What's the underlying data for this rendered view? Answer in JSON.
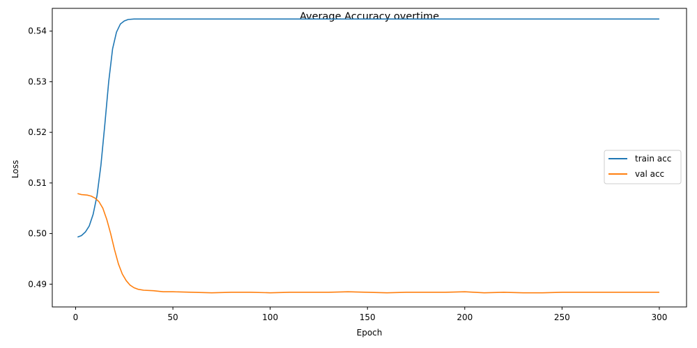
{
  "chart_data": {
    "type": "line",
    "title": "Average Accuracy overtime",
    "xlabel": "Epoch",
    "ylabel": "Loss",
    "xlim": [
      -12,
      314
    ],
    "ylim": [
      0.4855,
      0.5445
    ],
    "xticks": [
      0,
      50,
      100,
      150,
      200,
      250,
      300
    ],
    "yticks": [
      0.49,
      0.5,
      0.51,
      0.52,
      0.53,
      0.54
    ],
    "ytick_labels": [
      "0.49",
      "0.50",
      "0.51",
      "0.52",
      "0.53",
      "0.54"
    ],
    "grid": false,
    "legend_position": "center-right",
    "series": [
      {
        "name": "train acc",
        "color": "#1f77b4",
        "points": [
          [
            1,
            0.4993
          ],
          [
            3,
            0.4996
          ],
          [
            5,
            0.5003
          ],
          [
            7,
            0.5015
          ],
          [
            9,
            0.5038
          ],
          [
            11,
            0.5075
          ],
          [
            13,
            0.5135
          ],
          [
            15,
            0.5215
          ],
          [
            17,
            0.53
          ],
          [
            19,
            0.5365
          ],
          [
            21,
            0.5398
          ],
          [
            23,
            0.5414
          ],
          [
            25,
            0.542
          ],
          [
            27,
            0.5423
          ],
          [
            30,
            0.5424
          ],
          [
            35,
            0.5424
          ],
          [
            50,
            0.5424
          ],
          [
            100,
            0.5424
          ],
          [
            150,
            0.5424
          ],
          [
            200,
            0.5424
          ],
          [
            250,
            0.5424
          ],
          [
            300,
            0.5424
          ]
        ]
      },
      {
        "name": "val acc",
        "color": "#ff7f0e",
        "points": [
          [
            1,
            0.5079
          ],
          [
            3,
            0.5077
          ],
          [
            6,
            0.5076
          ],
          [
            8,
            0.5074
          ],
          [
            10,
            0.507
          ],
          [
            12,
            0.5063
          ],
          [
            14,
            0.505
          ],
          [
            16,
            0.5028
          ],
          [
            18,
            0.5
          ],
          [
            20,
            0.4968
          ],
          [
            22,
            0.494
          ],
          [
            24,
            0.492
          ],
          [
            26,
            0.4907
          ],
          [
            28,
            0.4898
          ],
          [
            30,
            0.4893
          ],
          [
            32,
            0.489
          ],
          [
            35,
            0.4888
          ],
          [
            40,
            0.4887
          ],
          [
            45,
            0.4885
          ],
          [
            50,
            0.4885
          ],
          [
            60,
            0.4884
          ],
          [
            70,
            0.4883
          ],
          [
            80,
            0.4884
          ],
          [
            90,
            0.4884
          ],
          [
            100,
            0.4883
          ],
          [
            110,
            0.4884
          ],
          [
            120,
            0.4884
          ],
          [
            130,
            0.4884
          ],
          [
            140,
            0.4885
          ],
          [
            150,
            0.4884
          ],
          [
            160,
            0.4883
          ],
          [
            170,
            0.4884
          ],
          [
            180,
            0.4884
          ],
          [
            190,
            0.4884
          ],
          [
            200,
            0.4885
          ],
          [
            210,
            0.4883
          ],
          [
            220,
            0.4884
          ],
          [
            230,
            0.4883
          ],
          [
            240,
            0.4883
          ],
          [
            250,
            0.4884
          ],
          [
            260,
            0.4884
          ],
          [
            270,
            0.4884
          ],
          [
            280,
            0.4884
          ],
          [
            290,
            0.4884
          ],
          [
            300,
            0.4884
          ]
        ]
      }
    ]
  }
}
